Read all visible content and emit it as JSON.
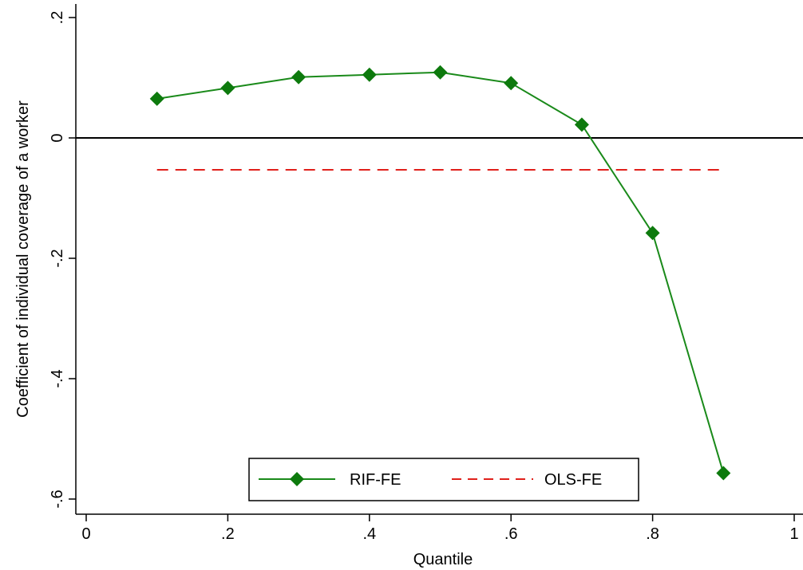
{
  "chart_data": {
    "type": "line",
    "xlabel": "Quantile",
    "ylabel": "Coefficient of individual coverage of a worker",
    "xlim": [
      0,
      1
    ],
    "ylim": [
      -0.6,
      0.2
    ],
    "x_ticks": [
      0,
      0.2,
      0.4,
      0.6,
      0.8,
      1
    ],
    "x_tick_labels": [
      "0",
      ".2",
      ".4",
      ".6",
      ".8",
      "1"
    ],
    "y_ticks": [
      -0.6,
      -0.4,
      -0.2,
      0,
      0.2
    ],
    "y_tick_labels": [
      "-.6",
      "-.4",
      "-.2",
      "0",
      ".2"
    ],
    "reference_line": {
      "y": 0,
      "color": "#000000"
    },
    "series": [
      {
        "name": "RIF-FE",
        "style": "solid-diamond",
        "color": "#1a8a1a",
        "marker_color": "#0d7a0d",
        "x": [
          0.1,
          0.2,
          0.3,
          0.4,
          0.5,
          0.6,
          0.7,
          0.8,
          0.9
        ],
        "y": [
          0.065,
          0.083,
          0.101,
          0.105,
          0.109,
          0.091,
          0.022,
          -0.158,
          -0.557
        ]
      },
      {
        "name": "OLS-FE",
        "style": "dashed",
        "color": "#e0201b",
        "x": [
          0.1,
          0.9
        ],
        "y": [
          -0.053,
          -0.053
        ]
      }
    ],
    "legend": {
      "position": "bottom-center",
      "entries": [
        "RIF-FE",
        "OLS-FE"
      ]
    },
    "grid": false
  }
}
